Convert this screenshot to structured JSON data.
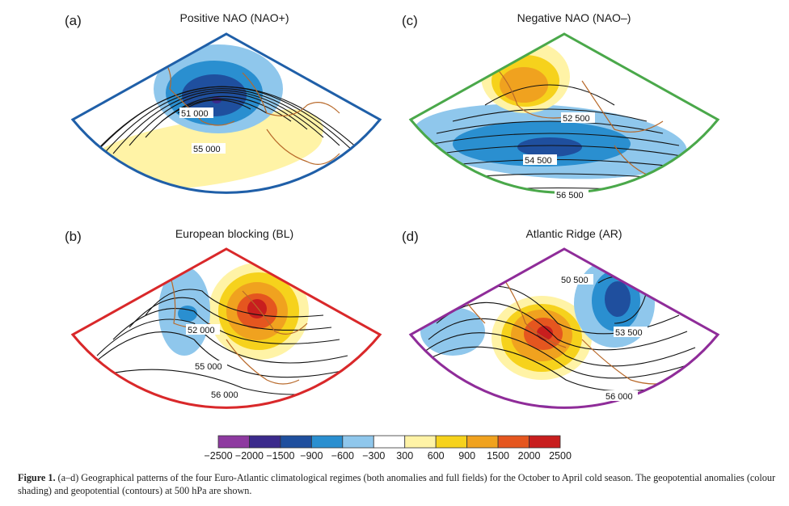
{
  "panels": [
    {
      "letter": "(a)",
      "title": "Positive NAO (NAO+)",
      "frame_color": "#1f5fa8",
      "contour_labels": [
        "51 000",
        "55 000"
      ]
    },
    {
      "letter": "(c)",
      "title": "Negative NAO (NAO–)",
      "frame_color": "#4aa84a",
      "contour_labels": [
        "52 500",
        "54 500",
        "56 500"
      ]
    },
    {
      "letter": "(b)",
      "title": "European blocking (BL)",
      "frame_color": "#d9282a",
      "contour_labels": [
        "52 000",
        "55 000",
        "56 000"
      ]
    },
    {
      "letter": "(d)",
      "title": "Atlantic Ridge (AR)",
      "frame_color": "#8f2c99",
      "contour_labels": [
        "50 500",
        "53 500",
        "56 000"
      ]
    }
  ],
  "colorbar": {
    "ticks": [
      "−2500",
      "−2000",
      "−1500",
      "−900",
      "−600",
      "−300",
      "300",
      "600",
      "900",
      "1500",
      "2000",
      "2500"
    ],
    "colors": [
      "#8e3aa0",
      "#3b2a8c",
      "#1f4f9e",
      "#2a8fd0",
      "#8fc7ec",
      "#ffffff",
      "#fff3a6",
      "#f6d21c",
      "#f0a21f",
      "#e5561f",
      "#c81e1e"
    ]
  },
  "caption": {
    "label": "Figure 1.",
    "text": "(a–d) Geographical patterns of the four Euro-Atlantic climatological regimes (both anomalies and full fields) for the October to April cold season. The geopotential anomalies (colour shading) and geopotential (contours) at 500 hPa are shown."
  }
}
